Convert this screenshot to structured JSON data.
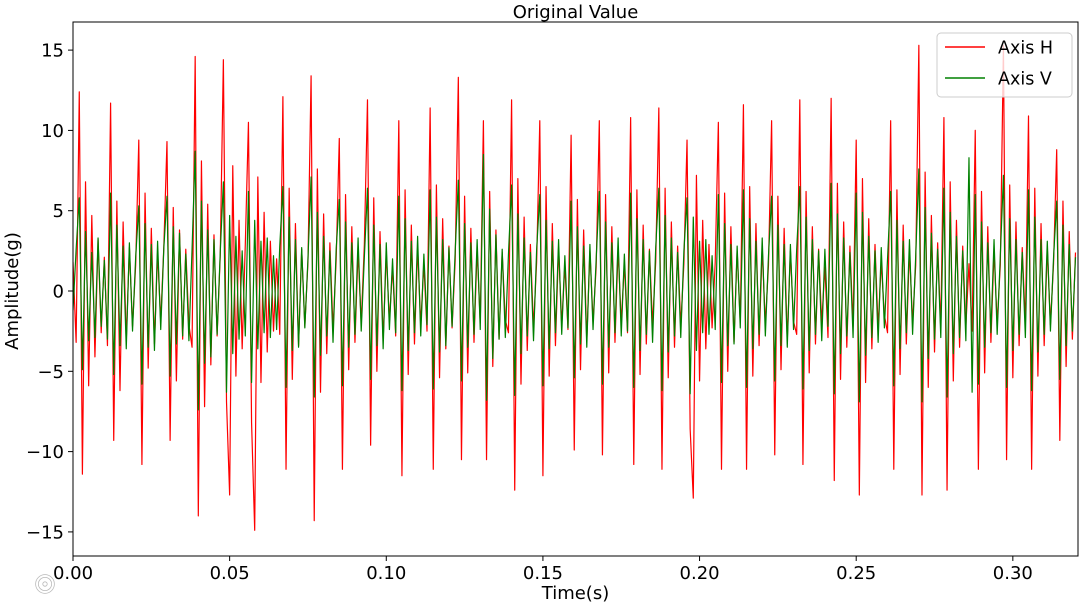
{
  "chart_data": {
    "type": "line",
    "title": "Original Value",
    "xlabel": "Time(s)",
    "ylabel": "Amplitude(g)",
    "xlim": [
      0,
      0.3208
    ],
    "ylim": [
      -16.5,
      16.75
    ],
    "grid": false,
    "legend": {
      "position": "upper right"
    },
    "x_ticks": {
      "values": [
        0,
        0.05,
        0.1,
        0.15,
        0.2,
        0.25,
        0.3
      ],
      "labels": [
        "0.00",
        "0.05",
        "0.10",
        "0.15",
        "0.20",
        "0.25",
        "0.30"
      ]
    },
    "y_ticks": {
      "values": [
        -15,
        -10,
        -5,
        0,
        5,
        10,
        15
      ],
      "labels": [
        "−15",
        "−10",
        "−5",
        "0",
        "5",
        "10",
        "15"
      ]
    },
    "x": [
      0,
      0.001,
      0.002,
      0.003,
      0.004,
      0.005,
      0.006,
      0.007,
      0.008,
      0.009,
      0.01,
      0.011,
      0.012,
      0.013,
      0.014,
      0.015,
      0.016,
      0.017,
      0.018,
      0.019,
      0.02,
      0.021,
      0.022,
      0.023,
      0.024,
      0.025,
      0.026,
      0.027,
      0.028,
      0.029,
      0.03,
      0.031,
      0.032,
      0.033,
      0.034,
      0.035,
      0.036,
      0.037,
      0.038,
      0.039,
      0.04,
      0.041,
      0.042,
      0.043,
      0.044,
      0.045,
      0.046,
      0.047,
      0.048,
      0.049,
      0.05,
      0.051,
      0.052,
      0.053,
      0.054,
      0.055,
      0.056,
      0.057,
      0.058,
      0.059,
      0.06,
      0.061,
      0.062,
      0.063,
      0.064,
      0.065,
      0.066,
      0.067,
      0.068,
      0.069,
      0.07,
      0.071,
      0.072,
      0.073,
      0.074,
      0.075,
      0.076,
      0.077,
      0.078,
      0.079,
      0.08,
      0.081,
      0.082,
      0.083,
      0.084,
      0.085,
      0.086,
      0.087,
      0.088,
      0.089,
      0.09,
      0.091,
      0.092,
      0.093,
      0.094,
      0.095,
      0.096,
      0.097,
      0.098,
      0.099,
      0.1,
      0.101,
      0.102,
      0.103,
      0.104,
      0.105,
      0.106,
      0.107,
      0.108,
      0.109,
      0.11,
      0.111,
      0.112,
      0.113,
      0.114,
      0.115,
      0.116,
      0.117,
      0.118,
      0.119,
      0.12,
      0.121,
      0.122,
      0.123,
      0.124,
      0.125,
      0.126,
      0.127,
      0.128,
      0.129,
      0.13,
      0.131,
      0.132,
      0.133,
      0.134,
      0.135,
      0.136,
      0.137,
      0.138,
      0.139,
      0.14,
      0.141,
      0.142,
      0.143,
      0.144,
      0.145,
      0.146,
      0.147,
      0.148,
      0.149,
      0.15,
      0.151,
      0.152,
      0.153,
      0.154,
      0.155,
      0.156,
      0.157,
      0.158,
      0.159,
      0.16,
      0.161,
      0.162,
      0.163,
      0.164,
      0.165,
      0.166,
      0.167,
      0.168,
      0.169,
      0.17,
      0.171,
      0.172,
      0.173,
      0.174,
      0.175,
      0.176,
      0.177,
      0.178,
      0.179,
      0.18,
      0.181,
      0.182,
      0.183,
      0.184,
      0.185,
      0.186,
      0.187,
      0.188,
      0.189,
      0.19,
      0.191,
      0.192,
      0.193,
      0.194,
      0.195,
      0.196,
      0.197,
      0.198,
      0.199,
      0.2,
      0.201,
      0.202,
      0.203,
      0.204,
      0.205,
      0.206,
      0.207,
      0.208,
      0.209,
      0.21,
      0.211,
      0.212,
      0.213,
      0.214,
      0.215,
      0.216,
      0.217,
      0.218,
      0.219,
      0.22,
      0.221,
      0.222,
      0.223,
      0.224,
      0.225,
      0.226,
      0.227,
      0.228,
      0.229,
      0.23,
      0.231,
      0.232,
      0.233,
      0.234,
      0.235,
      0.236,
      0.237,
      0.238,
      0.239,
      0.24,
      0.241,
      0.242,
      0.243,
      0.244,
      0.245,
      0.246,
      0.247,
      0.248,
      0.249,
      0.25,
      0.251,
      0.252,
      0.253,
      0.254,
      0.255,
      0.256,
      0.257,
      0.258,
      0.259,
      0.26,
      0.261,
      0.262,
      0.263,
      0.264,
      0.265,
      0.266,
      0.267,
      0.268,
      0.269,
      0.27,
      0.271,
      0.272,
      0.273,
      0.274,
      0.275,
      0.276,
      0.277,
      0.278,
      0.279,
      0.28,
      0.281,
      0.282,
      0.283,
      0.284,
      0.285,
      0.286,
      0.287,
      0.288,
      0.289,
      0.29,
      0.291,
      0.292,
      0.293,
      0.294,
      0.295,
      0.296,
      0.297,
      0.298,
      0.299,
      0.3,
      0.301,
      0.302,
      0.303,
      0.304,
      0.305,
      0.306,
      0.307,
      0.308,
      0.309,
      0.31,
      0.311,
      0.312,
      0.313,
      0.314,
      0.315,
      0.316,
      0.317,
      0.318,
      0.319,
      0.32
    ],
    "series": [
      {
        "name": "Axis H",
        "color": "#ff0000",
        "values": [
          1.8,
          -3.2,
          12.4,
          -11.4,
          6.8,
          -5.9,
          4.7,
          -4.1,
          3.2,
          -2.6,
          2.1,
          -3.4,
          11.7,
          -9.3,
          5.6,
          -6.2,
          4.3,
          -3.1,
          2.7,
          -2.2,
          1.6,
          9.4,
          -10.8,
          6.1,
          -4.8,
          3.9,
          -3.3,
          2.4,
          -1.9,
          2.8,
          9.3,
          -9.3,
          5.2,
          -5.6,
          3.8,
          -3.0,
          2.6,
          -2.1,
          -3.5,
          14.6,
          -14.0,
          8.1,
          -7.2,
          5.4,
          -4.6,
          3.5,
          -2.8,
          2.2,
          14.4,
          -6.9,
          -12.7,
          7.8,
          -5.3,
          4.4,
          -3.6,
          2.9,
          10.5,
          -8.2,
          -14.9,
          7.1,
          -5.7,
          4.9,
          -3.8,
          3.1,
          -2.5,
          2.0,
          -2.7,
          12.1,
          -11.1,
          6.4,
          -5.5,
          4.2,
          -3.4,
          2.6,
          -2.2,
          1.8,
          13.4,
          -14.3,
          7.6,
          -6.3,
          4.8,
          -3.9,
          3.0,
          -2.4,
          1.9,
          9.5,
          -11.1,
          6.0,
          -4.9,
          4.0,
          -3.2,
          2.5,
          -2.0,
          2.9,
          11.9,
          -9.6,
          5.8,
          -5.0,
          3.7,
          -3.1,
          2.4,
          -1.9,
          1.5,
          -2.8,
          10.6,
          -11.5,
          6.3,
          -5.2,
          4.1,
          -3.3,
          2.7,
          -2.1,
          1.7,
          -2.5,
          11.4,
          -11.1,
          6.6,
          -5.4,
          4.5,
          -3.6,
          2.8,
          -2.3,
          1.9,
          13.3,
          -10.5,
          5.9,
          -5.1,
          3.9,
          -3.2,
          2.6,
          -2.0,
          10.6,
          -10.5,
          6.2,
          -4.7,
          3.8,
          -3.0,
          2.4,
          -1.8,
          -2.6,
          11.9,
          -12.4,
          7.0,
          -5.8,
          4.6,
          -3.7,
          2.9,
          -2.3,
          1.8,
          10.6,
          -11.5,
          6.5,
          -5.3,
          4.2,
          -3.4,
          2.7,
          -2.1,
          1.6,
          -2.4,
          9.7,
          -9.9,
          5.7,
          -4.9,
          3.8,
          -3.1,
          2.5,
          -1.9,
          1.5,
          10.6,
          -10.2,
          6.0,
          -5.1,
          4.0,
          -3.2,
          2.6,
          -2.0,
          1.7,
          -2.6,
          10.8,
          -10.8,
          6.3,
          -5.2,
          4.1,
          -3.3,
          2.6,
          -2.1,
          1.8,
          11.4,
          -11.1,
          6.4,
          -5.4,
          4.3,
          -3.5,
          2.8,
          -2.2,
          1.7,
          9.4,
          -8.6,
          -12.9,
          7.2,
          -5.6,
          4.4,
          -3.6,
          2.9,
          -2.3,
          1.8,
          10.5,
          -11.1,
          6.1,
          -5.0,
          4.0,
          -3.2,
          2.5,
          -2.0,
          11.6,
          -11.1,
          6.5,
          -5.3,
          4.2,
          -3.4,
          2.7,
          -2.1,
          1.6,
          10.6,
          -10.2,
          5.9,
          -4.9,
          3.9,
          -3.1,
          2.5,
          -1.9,
          -2.7,
          11.9,
          -10.8,
          6.2,
          -5.1,
          4.0,
          -3.3,
          2.6,
          -2.0,
          1.5,
          -2.9,
          12.0,
          -11.8,
          6.7,
          -5.5,
          4.3,
          -3.5,
          2.8,
          -2.2,
          9.4,
          -12.7,
          7.0,
          -5.7,
          4.5,
          -3.6,
          2.9,
          -2.3,
          1.8,
          -1.5,
          -2.6,
          10.6,
          -11.1,
          6.3,
          -5.2,
          4.1,
          -3.3,
          2.6,
          -2.0,
          1.6,
          15.3,
          -12.7,
          7.4,
          -6.0,
          4.7,
          -3.8,
          3.0,
          -2.4,
          10.8,
          -12.4,
          6.8,
          -5.6,
          4.4,
          -3.5,
          2.8,
          -2.2,
          1.7,
          -2.5,
          10.0,
          -11.1,
          6.2,
          -5.1,
          4.0,
          -3.2,
          2.5,
          -2.0,
          1.6,
          15.3,
          -10.5,
          6.6,
          -5.4,
          4.3,
          -3.4,
          2.7,
          -2.1,
          10.9,
          -11.1,
          6.4,
          -5.3,
          4.2,
          -3.4,
          2.7,
          -2.1,
          1.7,
          8.8,
          -9.3,
          5.6,
          -4.7,
          3.7,
          -3.0,
          2.4
        ]
      },
      {
        "name": "Axis V",
        "color": "#008000",
        "values": [
          -1.2,
          2.6,
          5.8,
          -4.9,
          3.7,
          -3.1,
          2.4,
          -2.9,
          3.3,
          -2.2,
          1.9,
          -3.0,
          6.1,
          -5.2,
          4.1,
          -3.4,
          2.8,
          -3.6,
          3.0,
          -2.5,
          2.1,
          5.3,
          -5.8,
          4.2,
          -3.5,
          2.9,
          -3.7,
          3.1,
          -2.4,
          2.7,
          5.9,
          -5.3,
          4.0,
          -3.3,
          3.6,
          -2.8,
          2.3,
          -3.1,
          2.6,
          8.7,
          -7.4,
          5.6,
          -4.5,
          3.8,
          -4.1,
          3.2,
          -2.7,
          2.4,
          6.8,
          -6.3,
          4.7,
          -3.9,
          3.4,
          -3.0,
          2.5,
          -2.8,
          6.2,
          -5.7,
          4.4,
          -3.6,
          3.1,
          -2.6,
          3.3,
          -2.9,
          2.2,
          -2.4,
          2.8,
          6.5,
          -6.0,
          4.6,
          -3.7,
          3.2,
          -3.5,
          2.7,
          -2.3,
          2.0,
          7.1,
          -6.6,
          4.9,
          -4.0,
          3.4,
          -2.8,
          2.5,
          -3.2,
          2.6,
          5.7,
          -5.9,
          4.3,
          -3.5,
          3.0,
          -2.7,
          3.3,
          -2.5,
          2.1,
          6.4,
          -5.5,
          4.1,
          -3.4,
          2.9,
          -3.6,
          3.0,
          -2.4,
          2.0,
          -2.6,
          5.9,
          -6.2,
          4.5,
          -3.7,
          3.1,
          -2.6,
          3.4,
          -2.8,
          2.3,
          -2.1,
          6.3,
          -6.1,
          4.6,
          -3.8,
          3.2,
          -3.4,
          2.7,
          -2.2,
          2.5,
          6.9,
          -5.6,
          4.2,
          -3.5,
          3.0,
          -2.7,
          3.2,
          -2.4,
          8.5,
          -6.8,
          5.1,
          -4.2,
          3.5,
          -3.0,
          2.6,
          -2.9,
          2.3,
          6.6,
          -6.5,
          4.8,
          -3.9,
          3.3,
          -2.8,
          2.4,
          -3.1,
          2.6,
          6.0,
          -5.9,
          4.4,
          -3.6,
          3.1,
          -2.6,
          3.2,
          -2.7,
          2.2,
          -2.3,
          5.6,
          -5.4,
          4.0,
          -3.3,
          2.8,
          -3.5,
          2.9,
          -2.4,
          2.0,
          6.2,
          -5.8,
          4.3,
          -3.5,
          3.0,
          -2.6,
          3.3,
          -2.8,
          2.3,
          -2.5,
          6.1,
          -6.0,
          4.5,
          -3.7,
          3.2,
          -2.7,
          2.5,
          -3.2,
          2.7,
          6.4,
          -6.2,
          4.7,
          -3.8,
          3.3,
          -2.8,
          2.4,
          -2.9,
          2.5,
          5.8,
          -6.4,
          4.6,
          -3.7,
          3.1,
          -2.6,
          3.2,
          -2.7,
          2.2,
          -2.4,
          6.0,
          -5.7,
          4.2,
          -3.4,
          2.9,
          -3.3,
          2.8,
          -2.3,
          6.3,
          -6.0,
          4.5,
          -3.6,
          3.1,
          -2.7,
          3.3,
          -2.8,
          2.2,
          5.9,
          -5.6,
          4.1,
          -3.4,
          2.9,
          -3.5,
          2.9,
          -2.4,
          2.6,
          6.5,
          -6.1,
          4.6,
          -3.7,
          3.2,
          -2.7,
          2.5,
          -3.1,
          2.6,
          -2.2,
          6.7,
          -6.4,
          4.8,
          -3.9,
          3.3,
          -2.8,
          2.4,
          -2.9,
          6.1,
          -6.9,
          4.9,
          -4.0,
          3.4,
          -2.9,
          2.5,
          -3.2,
          2.7,
          -2.3,
          2.0,
          6.2,
          -5.9,
          4.4,
          -3.6,
          3.1,
          -2.6,
          3.2,
          -2.7,
          2.2,
          7.6,
          -6.9,
          5.2,
          -4.2,
          3.6,
          -3.0,
          2.6,
          -2.9,
          6.4,
          -6.6,
          4.9,
          -3.9,
          3.4,
          -2.9,
          2.5,
          -3.1,
          8.3,
          -6.3,
          6.0,
          -5.8,
          4.3,
          -3.5,
          3.0,
          -2.6,
          3.2,
          -2.7,
          2.2,
          7.2,
          -6.0,
          4.5,
          -3.7,
          3.2,
          -2.7,
          2.4,
          -2.9,
          6.3,
          -6.2,
          4.6,
          -3.8,
          3.2,
          -2.7,
          3.1,
          -2.5,
          2.1,
          5.6,
          -5.5,
          4.1,
          -3.4,
          2.9,
          -2.5,
          2.1
        ]
      }
    ]
  },
  "watermark": {
    "text": "大数跨境"
  }
}
